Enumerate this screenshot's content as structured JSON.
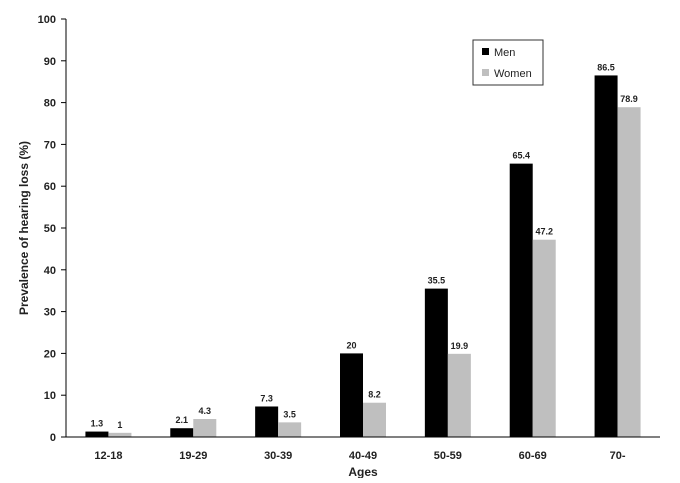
{
  "chart_data": {
    "type": "bar",
    "categories": [
      "12-18",
      "19-29",
      "30-39",
      "40-49",
      "50-59",
      "60-69",
      "70-"
    ],
    "series": [
      {
        "name": "Men",
        "values": [
          1.3,
          2.1,
          7.3,
          20,
          35.5,
          65.4,
          86.5
        ],
        "labels": [
          "1.3",
          "2.1",
          "7.3",
          "20",
          "35.5",
          "65.4",
          "86.5"
        ],
        "color": "#000000"
      },
      {
        "name": "Women",
        "values": [
          1,
          4.3,
          3.5,
          8.2,
          19.9,
          47.2,
          78.9
        ],
        "labels": [
          "1",
          "4.3",
          "3.5",
          "8.2",
          "19.9",
          "47.2",
          "78.9"
        ],
        "color": "#bfbfbf"
      }
    ],
    "xlabel": "Ages",
    "ylabel": "Prevalence of hearing loss (%)",
    "ylim": [
      0,
      100
    ],
    "yticks": [
      "0",
      "10",
      "20",
      "30",
      "40",
      "50",
      "60",
      "70",
      "80",
      "90",
      "100"
    ],
    "grid": false,
    "legend_position": "top-right"
  }
}
